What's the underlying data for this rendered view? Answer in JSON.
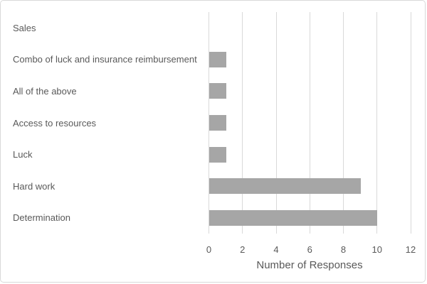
{
  "chart_data": {
    "type": "bar",
    "orientation": "horizontal",
    "title": "",
    "categories": [
      "Sales",
      "Combo of luck and insurance reimbursement",
      "All of the above",
      "Access to resources",
      "Luck",
      "Hard work",
      "Determination"
    ],
    "values": [
      0,
      1,
      1,
      1,
      1,
      9,
      10
    ],
    "xlabel": "Number of Responses",
    "xticks": [
      0,
      2,
      4,
      6,
      8,
      10,
      12
    ],
    "xlim": [
      0,
      12
    ],
    "grid": true,
    "legend": "none",
    "colors": {
      "bar": "#a6a6a6",
      "gridline": "#d9d9d9",
      "axis_line": "#d9d9d9",
      "text": "#595959",
      "border": "#d9d9d9",
      "background": "#ffffff"
    }
  }
}
